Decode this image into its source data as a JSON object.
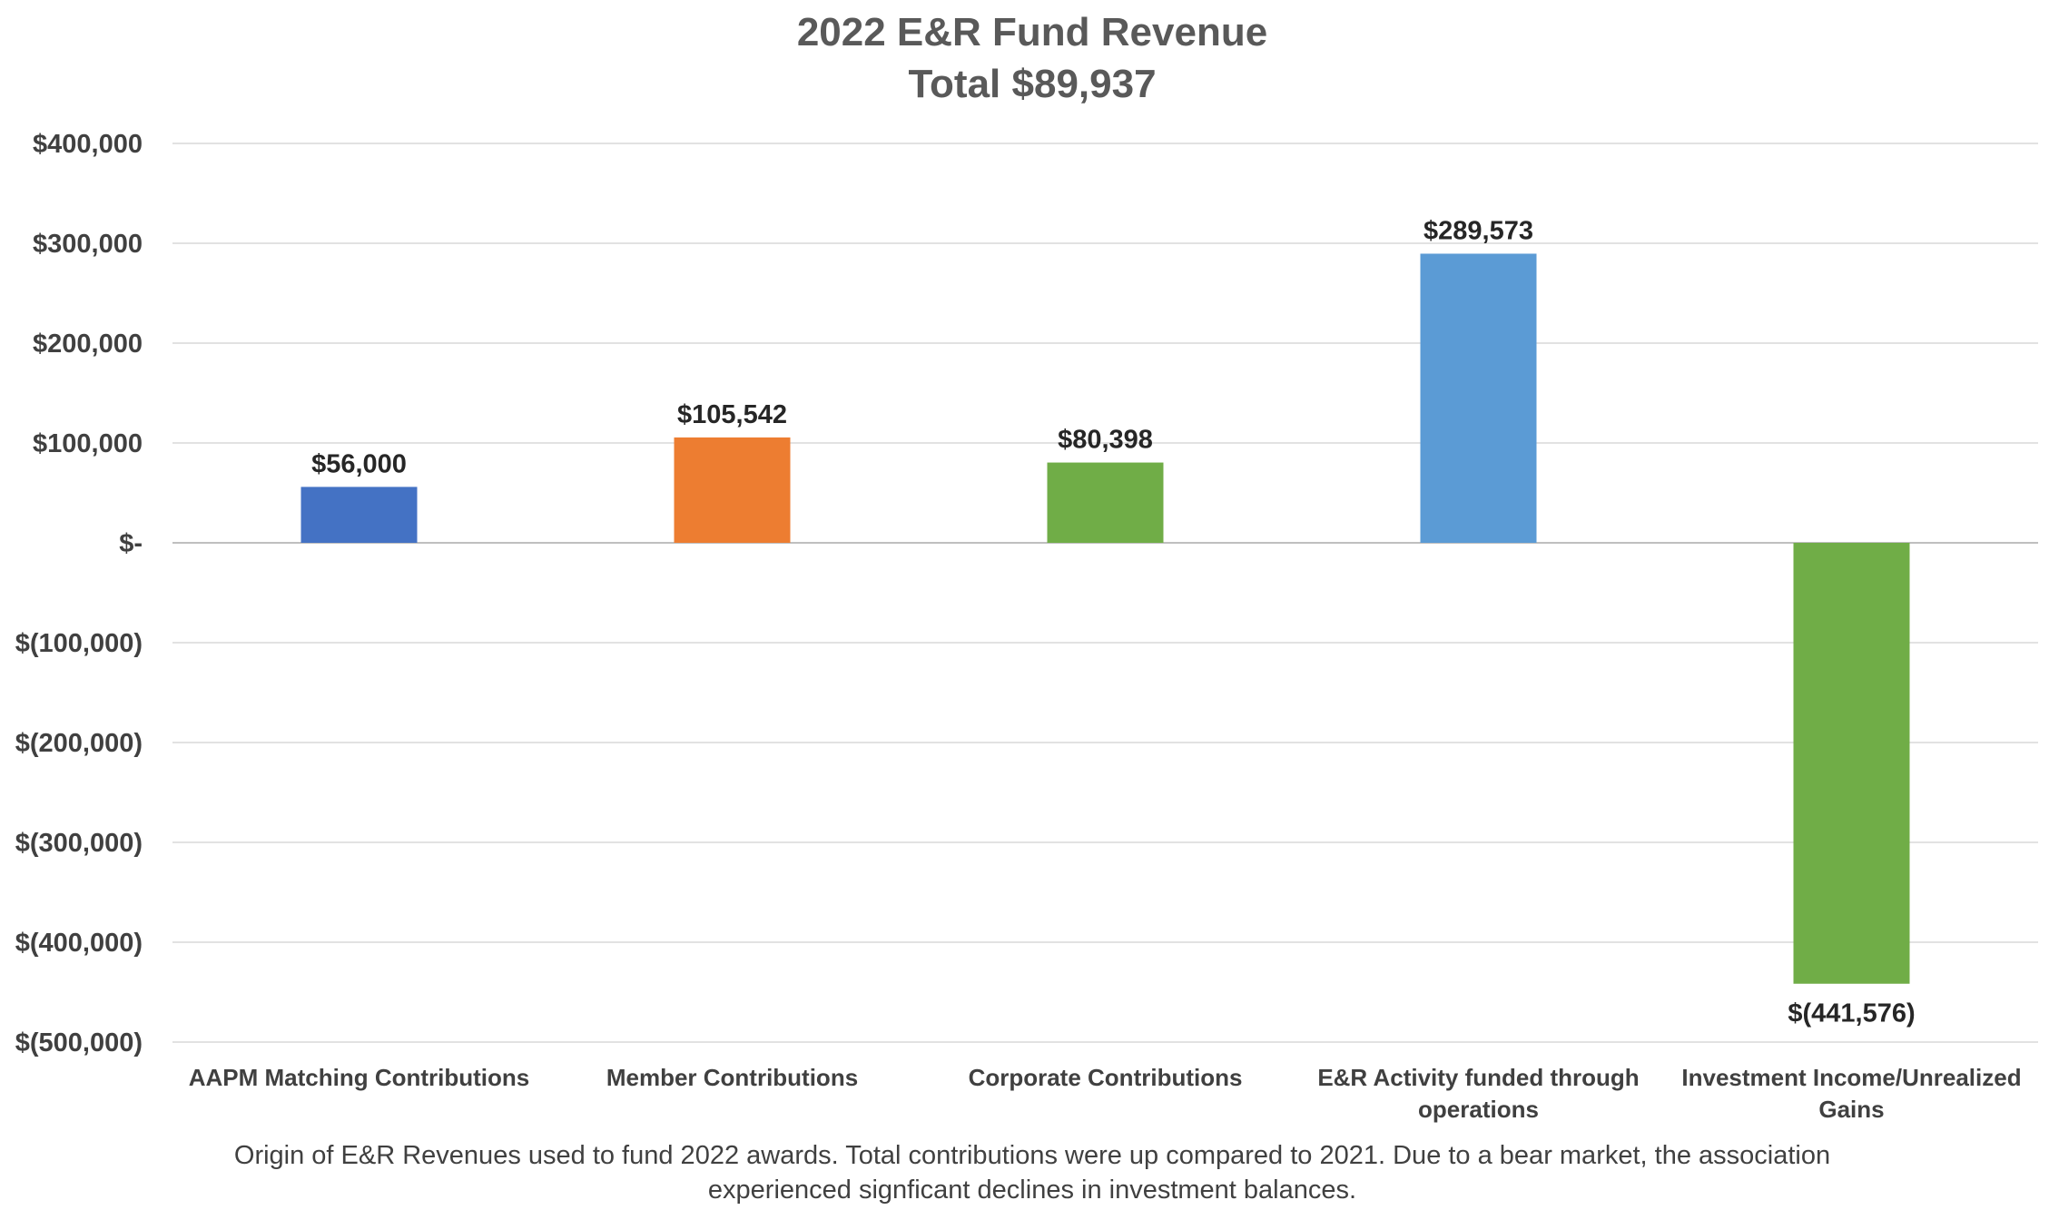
{
  "chart_data": {
    "type": "bar",
    "title": "2022 E&R Fund Revenue",
    "subtitle": "Total $89,937",
    "categories": [
      [
        "AAPM Matching Contributions"
      ],
      [
        "Member Contributions"
      ],
      [
        "Corporate Contributions"
      ],
      [
        "E&R Activity funded through",
        "operations"
      ],
      [
        "Investment Income/Unrealized",
        "Gains"
      ]
    ],
    "values": [
      56000,
      105542,
      80398,
      289573,
      -441576
    ],
    "data_labels": [
      "$56,000",
      "$105,542",
      "$80,398",
      "$289,573",
      "$(441,576)"
    ],
    "colors": [
      "#4472c4",
      "#ed7d31",
      "#70ad47",
      "#5b9bd5",
      "#70ad47"
    ],
    "ylim": [
      -500000,
      400000
    ],
    "yticks": [
      400000,
      300000,
      200000,
      100000,
      0,
      -100000,
      -200000,
      -300000,
      -400000,
      -500000
    ],
    "ytick_labels": [
      "$400,000",
      "$300,000",
      "$200,000",
      "$100,000",
      "$-",
      "$(100,000)",
      "$(200,000)",
      "$(300,000)",
      "$(400,000)",
      "$(500,000)"
    ],
    "grid": true,
    "xlabel": "",
    "ylabel": ""
  },
  "caption": {
    "line1": "Origin of E&R Revenues used to fund 2022 awards. Total contributions were up compared to 2021. Due to a bear market, the association",
    "line2": "experienced signficant declines in investment balances."
  }
}
